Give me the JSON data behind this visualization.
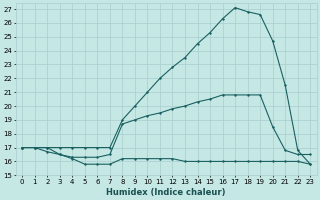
{
  "xlabel": "Humidex (Indice chaleur)",
  "background_color": "#c5e8e5",
  "grid_color": "#a8cece",
  "line_color": "#1a6060",
  "xlim": [
    -0.5,
    23.5
  ],
  "ylim": [
    15,
    27.4
  ],
  "yticks": [
    15,
    16,
    17,
    18,
    19,
    20,
    21,
    22,
    23,
    24,
    25,
    26,
    27
  ],
  "xticks": [
    0,
    1,
    2,
    3,
    4,
    5,
    6,
    7,
    8,
    9,
    10,
    11,
    12,
    13,
    14,
    15,
    16,
    17,
    18,
    19,
    20,
    21,
    22,
    23
  ],
  "line1_x": [
    0,
    1,
    2,
    3,
    4,
    5,
    6,
    7,
    8,
    9,
    10,
    11,
    12,
    13,
    14,
    15,
    16,
    17,
    18,
    19,
    20,
    21,
    22,
    23
  ],
  "line1_y": [
    17.0,
    17.0,
    16.7,
    16.5,
    16.2,
    15.8,
    15.8,
    15.8,
    16.2,
    16.2,
    16.2,
    16.2,
    16.2,
    16.0,
    16.0,
    16.0,
    16.0,
    16.0,
    16.0,
    16.0,
    16.0,
    16.0,
    16.0,
    15.8
  ],
  "line2_x": [
    0,
    1,
    2,
    3,
    4,
    5,
    6,
    7,
    8,
    9,
    10,
    11,
    12,
    13,
    14,
    15,
    16,
    17,
    18,
    19,
    20,
    21,
    22,
    23
  ],
  "line2_y": [
    17.0,
    17.0,
    17.0,
    16.5,
    16.3,
    16.3,
    16.3,
    16.5,
    18.7,
    19.0,
    19.3,
    19.5,
    19.8,
    20.0,
    20.3,
    20.5,
    20.8,
    20.8,
    20.8,
    20.8,
    18.5,
    16.8,
    16.5,
    16.5
  ],
  "line3_x": [
    0,
    1,
    2,
    3,
    4,
    5,
    6,
    7,
    8,
    9,
    10,
    11,
    12,
    13,
    14,
    15,
    16,
    17,
    18,
    19,
    20,
    21,
    22,
    23
  ],
  "line3_y": [
    17.0,
    17.0,
    17.0,
    17.0,
    17.0,
    17.0,
    17.0,
    17.0,
    19.0,
    20.0,
    21.0,
    22.0,
    22.8,
    23.5,
    24.5,
    25.3,
    26.3,
    27.1,
    26.8,
    26.6,
    24.7,
    21.5,
    16.8,
    15.8
  ]
}
